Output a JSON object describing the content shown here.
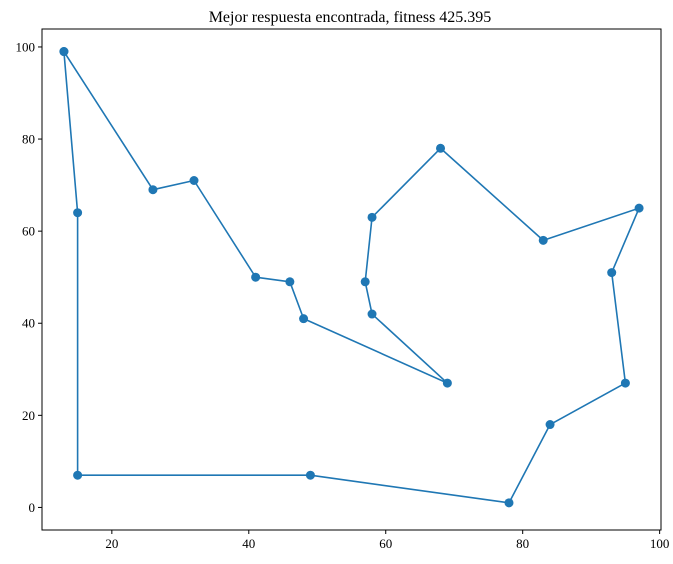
{
  "chart_data": {
    "type": "line",
    "title": "Mejor respuesta encontrada, fitness 425.395",
    "xlabel": "",
    "ylabel": "",
    "xlim": [
      9.8,
      100.2
    ],
    "ylim": [
      -4.9,
      103.9
    ],
    "x_ticks": [
      20,
      40,
      60,
      80,
      100
    ],
    "y_ticks": [
      0,
      20,
      40,
      60,
      80,
      100
    ],
    "grid": false,
    "line_color": "#1f77b4",
    "marker": "circle",
    "series": [
      {
        "x": [
          13,
          26,
          32,
          41,
          46,
          48,
          69,
          58,
          57,
          58,
          68,
          83,
          97,
          93,
          95,
          84,
          78,
          49,
          15,
          15,
          13
        ],
        "y": [
          99,
          69,
          71,
          50,
          49,
          41,
          27,
          42,
          49,
          63,
          78,
          58,
          65,
          51,
          27,
          18,
          1,
          7,
          7,
          64,
          99
        ]
      }
    ]
  }
}
